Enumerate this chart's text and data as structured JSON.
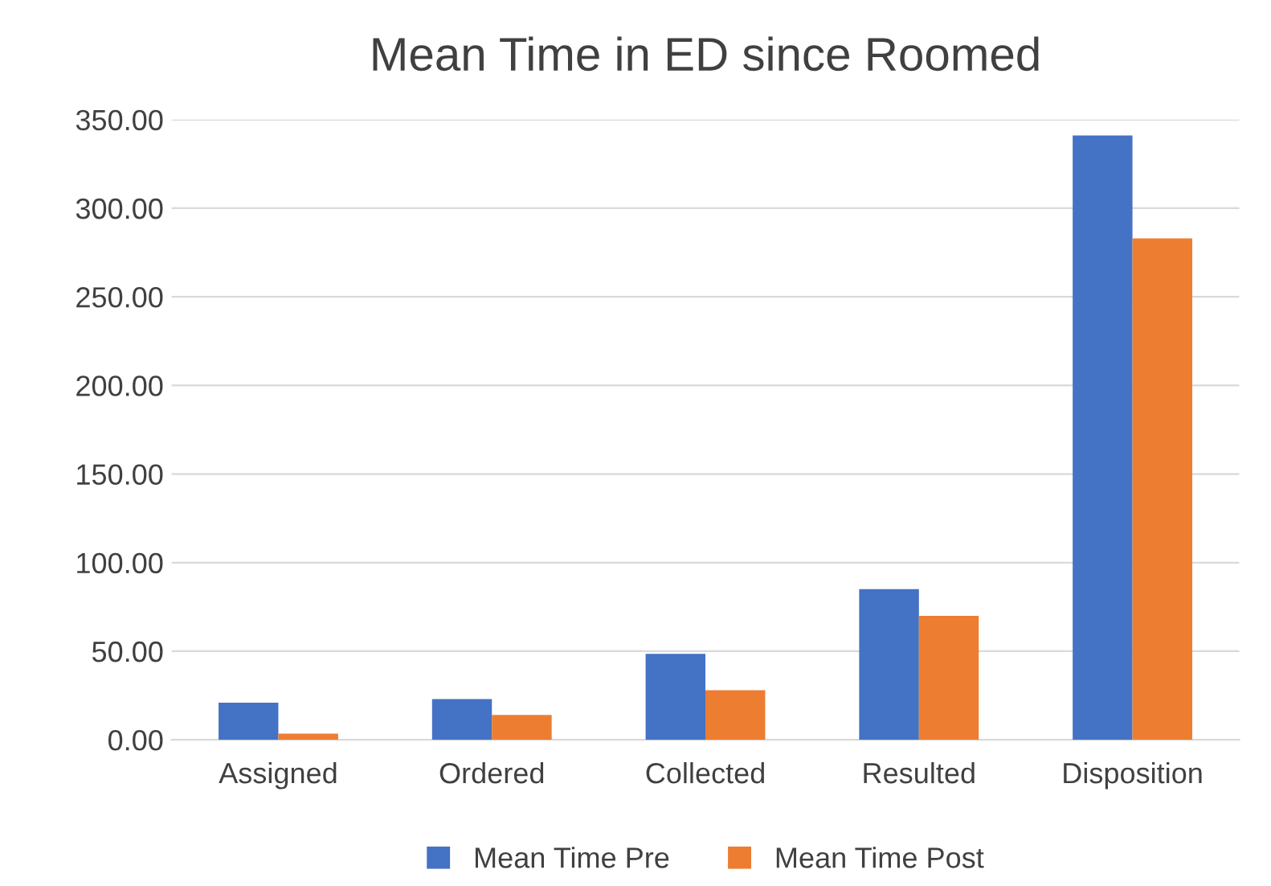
{
  "chart_data": {
    "type": "bar",
    "title": "Mean Time in ED since Roomed",
    "categories": [
      "Assigned",
      "Ordered",
      "Collected",
      "Resulted",
      "Disposition"
    ],
    "series": [
      {
        "name": "Mean Time Pre",
        "color": "#4472c4",
        "values": [
          21,
          23,
          48.5,
          85,
          341
        ]
      },
      {
        "name": "Mean Time Post",
        "color": "#ed7d31",
        "values": [
          3.5,
          14,
          28,
          70,
          283
        ]
      }
    ],
    "ylim": [
      0,
      350
    ],
    "yticks": [
      {
        "value": 0,
        "label": "0.00"
      },
      {
        "value": 50,
        "label": "50.00"
      },
      {
        "value": 100,
        "label": "100.00"
      },
      {
        "value": 150,
        "label": "150.00"
      },
      {
        "value": 200,
        "label": "200.00"
      },
      {
        "value": 250,
        "label": "250.00"
      },
      {
        "value": 300,
        "label": "300.00"
      },
      {
        "value": 350,
        "label": "350.00"
      }
    ],
    "grid": "y",
    "legend": "bottom"
  }
}
